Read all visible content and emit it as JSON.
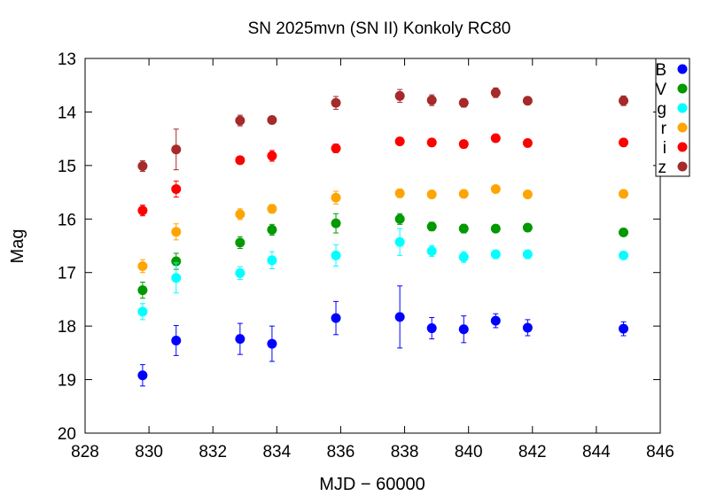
{
  "chart_data": {
    "type": "scatter",
    "title": "SN 2025mvn (SN II) Konkoly RC80",
    "xlabel": "MJD − 60000",
    "ylabel": "Mag",
    "xlim": [
      828,
      846
    ],
    "ylim": [
      20,
      13
    ],
    "y_inverted": true,
    "xticks": [
      "828",
      "830",
      "832",
      "834",
      "836",
      "838",
      "840",
      "842",
      "844",
      "846"
    ],
    "yticks": [
      "13",
      "14",
      "15",
      "16",
      "17",
      "18",
      "19",
      "20"
    ],
    "legend_position": "top-right",
    "grid": false,
    "series": [
      {
        "name": "B",
        "color": "#0000ff",
        "points": [
          {
            "x": 829.8,
            "y": 18.92,
            "err": 0.2
          },
          {
            "x": 830.85,
            "y": 18.27,
            "err": 0.28
          },
          {
            "x": 832.85,
            "y": 18.24,
            "err": 0.29
          },
          {
            "x": 833.85,
            "y": 18.33,
            "err": 0.33
          },
          {
            "x": 835.85,
            "y": 17.85,
            "err": 0.31
          },
          {
            "x": 837.85,
            "y": 17.83,
            "err": 0.58
          },
          {
            "x": 838.85,
            "y": 18.04,
            "err": 0.2
          },
          {
            "x": 839.85,
            "y": 18.06,
            "err": 0.25
          },
          {
            "x": 840.85,
            "y": 17.9,
            "err": 0.13
          },
          {
            "x": 841.85,
            "y": 18.03,
            "err": 0.15
          },
          {
            "x": 844.85,
            "y": 18.05,
            "err": 0.13
          }
        ]
      },
      {
        "name": "V",
        "color": "#009900",
        "points": [
          {
            "x": 829.8,
            "y": 17.33,
            "err": 0.15
          },
          {
            "x": 830.85,
            "y": 16.79,
            "err": 0.15
          },
          {
            "x": 832.85,
            "y": 16.44,
            "err": 0.11
          },
          {
            "x": 833.85,
            "y": 16.2,
            "err": 0.1
          },
          {
            "x": 835.85,
            "y": 16.08,
            "err": 0.18
          },
          {
            "x": 837.85,
            "y": 16.0,
            "err": 0.1
          },
          {
            "x": 838.85,
            "y": 16.14,
            "err": 0.08
          },
          {
            "x": 839.85,
            "y": 16.18,
            "err": 0.08
          },
          {
            "x": 840.85,
            "y": 16.18,
            "err": 0.07
          },
          {
            "x": 841.85,
            "y": 16.16,
            "err": 0.07
          },
          {
            "x": 844.85,
            "y": 16.25,
            "err": 0.07
          }
        ]
      },
      {
        "name": "g",
        "color": "#00ffff",
        "points": [
          {
            "x": 829.8,
            "y": 17.73,
            "err": 0.15
          },
          {
            "x": 830.85,
            "y": 17.1,
            "err": 0.28
          },
          {
            "x": 832.85,
            "y": 17.01,
            "err": 0.12
          },
          {
            "x": 833.85,
            "y": 16.77,
            "err": 0.16
          },
          {
            "x": 835.85,
            "y": 16.68,
            "err": 0.2
          },
          {
            "x": 837.85,
            "y": 16.43,
            "err": 0.25
          },
          {
            "x": 838.85,
            "y": 16.6,
            "err": 0.1
          },
          {
            "x": 839.85,
            "y": 16.71,
            "err": 0.1
          },
          {
            "x": 840.85,
            "y": 16.66,
            "err": 0.08
          },
          {
            "x": 841.85,
            "y": 16.66,
            "err": 0.08
          },
          {
            "x": 844.85,
            "y": 16.68,
            "err": 0.07
          }
        ]
      },
      {
        "name": "r",
        "color": "#ffa500",
        "points": [
          {
            "x": 829.8,
            "y": 16.88,
            "err": 0.12
          },
          {
            "x": 830.85,
            "y": 16.24,
            "err": 0.15
          },
          {
            "x": 832.85,
            "y": 15.91,
            "err": 0.1
          },
          {
            "x": 833.85,
            "y": 15.81,
            "err": 0.08
          },
          {
            "x": 835.85,
            "y": 15.6,
            "err": 0.12
          },
          {
            "x": 837.85,
            "y": 15.52,
            "err": 0.08
          },
          {
            "x": 838.85,
            "y": 15.54,
            "err": 0.07
          },
          {
            "x": 839.85,
            "y": 15.53,
            "err": 0.07
          },
          {
            "x": 840.85,
            "y": 15.44,
            "err": 0.06
          },
          {
            "x": 841.85,
            "y": 15.54,
            "err": 0.06
          },
          {
            "x": 844.85,
            "y": 15.53,
            "err": 0.06
          }
        ]
      },
      {
        "name": "i",
        "color": "#ff0000",
        "points": [
          {
            "x": 829.8,
            "y": 15.84,
            "err": 0.1
          },
          {
            "x": 830.85,
            "y": 15.44,
            "err": 0.15
          },
          {
            "x": 832.85,
            "y": 14.9,
            "err": 0.07
          },
          {
            "x": 833.85,
            "y": 14.82,
            "err": 0.1
          },
          {
            "x": 835.85,
            "y": 14.68,
            "err": 0.08
          },
          {
            "x": 837.85,
            "y": 14.55,
            "err": 0.06
          },
          {
            "x": 838.85,
            "y": 14.57,
            "err": 0.06
          },
          {
            "x": 839.85,
            "y": 14.6,
            "err": 0.06
          },
          {
            "x": 840.85,
            "y": 14.49,
            "err": 0.05
          },
          {
            "x": 841.85,
            "y": 14.58,
            "err": 0.05
          },
          {
            "x": 844.85,
            "y": 14.57,
            "err": 0.05
          }
        ]
      },
      {
        "name": "z",
        "color": "#a52a2a",
        "points": [
          {
            "x": 829.8,
            "y": 15.01,
            "err": 0.1
          },
          {
            "x": 830.85,
            "y": 14.7,
            "err": 0.38
          },
          {
            "x": 832.85,
            "y": 14.16,
            "err": 0.1
          },
          {
            "x": 833.85,
            "y": 14.15,
            "err": 0.07
          },
          {
            "x": 835.85,
            "y": 13.83,
            "err": 0.12
          },
          {
            "x": 837.85,
            "y": 13.7,
            "err": 0.12
          },
          {
            "x": 838.85,
            "y": 13.78,
            "err": 0.1
          },
          {
            "x": 839.85,
            "y": 13.83,
            "err": 0.08
          },
          {
            "x": 840.85,
            "y": 13.64,
            "err": 0.09
          },
          {
            "x": 841.85,
            "y": 13.79,
            "err": 0.07
          },
          {
            "x": 844.85,
            "y": 13.79,
            "err": 0.09
          }
        ]
      }
    ]
  }
}
